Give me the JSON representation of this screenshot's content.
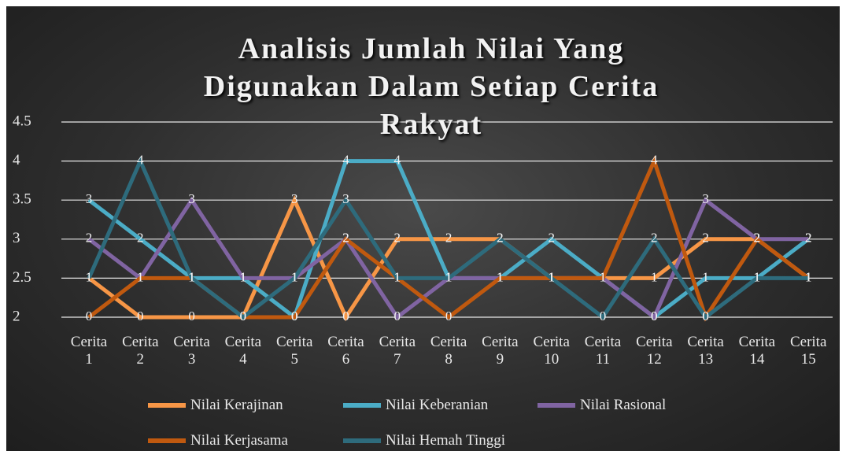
{
  "chart_data": {
    "type": "line",
    "title": "Analisis Jumlah Nilai Yang Digunakan Dalam Setiap Cerita Rakyat",
    "categories": [
      "Cerita 1",
      "Cerita 2",
      "Cerita 3",
      "Cerita 4",
      "Cerita 5",
      "Cerita 6",
      "Cerita 7",
      "Cerita 8",
      "Cerita 9",
      "Cerita 10",
      "Cerita 11",
      "Cerita 12",
      "Cerita 13",
      "Cerita 14",
      "Cerita 15"
    ],
    "series": [
      {
        "name": "Nilai Kerajinan",
        "color": "#f79646",
        "values": [
          1,
          0,
          0,
          0,
          3,
          0,
          2,
          2,
          2,
          1,
          1,
          1,
          2,
          2,
          1
        ]
      },
      {
        "name": "Nilai Keberanian",
        "color": "#4bacc6",
        "values": [
          3,
          2,
          1,
          1,
          0,
          4,
          4,
          1,
          1,
          2,
          1,
          0,
          1,
          1,
          2
        ]
      },
      {
        "name": "Nilai Rasional",
        "color": "#8064a2",
        "values": [
          2,
          1,
          3,
          1,
          1,
          2,
          0,
          1,
          1,
          1,
          1,
          0,
          3,
          2,
          2
        ]
      },
      {
        "name": "Nilai Kerjasama",
        "color": "#c0590f",
        "values": [
          0,
          1,
          1,
          0,
          0,
          2,
          1,
          0,
          1,
          1,
          1,
          4,
          0,
          2,
          1
        ]
      },
      {
        "name": "Nilai Hemah Tinggi",
        "color": "#2e6b7c",
        "values": [
          1,
          4,
          1,
          0,
          1,
          3,
          1,
          1,
          2,
          1,
          0,
          2,
          0,
          1,
          1
        ]
      }
    ],
    "ylim": [
      0,
      5
    ],
    "yticks": [
      {
        "value": 0,
        "label": "2"
      },
      {
        "value": 1,
        "label": "2.5"
      },
      {
        "value": 2,
        "label": "3"
      },
      {
        "value": 3,
        "label": "3.5"
      },
      {
        "value": 4,
        "label": "4"
      },
      {
        "value": 5,
        "label": "4.5"
      }
    ],
    "grid": true
  }
}
